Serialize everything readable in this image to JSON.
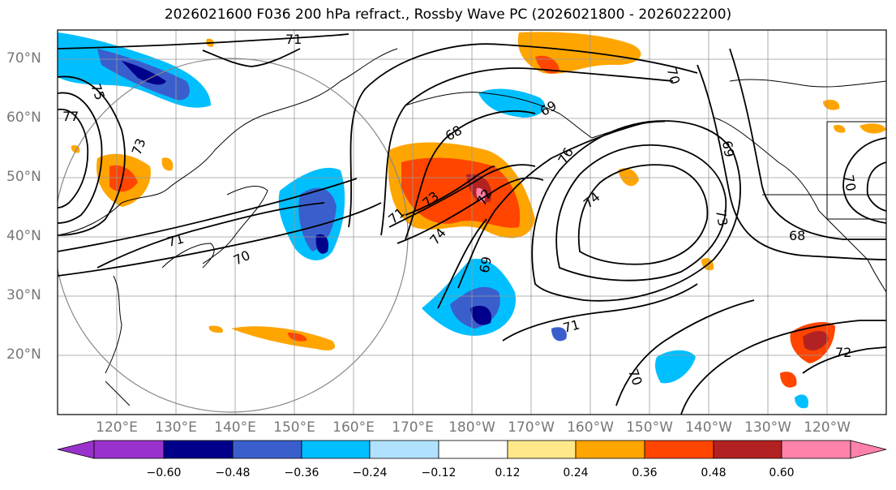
{
  "title": "2026021600 F036 200 hPa refract., Rossby Wave PC (2026021800 - 2026022200)",
  "axes": {
    "lat_labels": [
      "70°N",
      "60°N",
      "50°N",
      "40°N",
      "30°N",
      "20°N"
    ],
    "lon_labels": [
      "120°E",
      "130°E",
      "140°E",
      "150°E",
      "160°E",
      "170°E",
      "180°W",
      "170°W",
      "160°W",
      "150°W",
      "140°W",
      "130°W",
      "120°W"
    ]
  },
  "contour_labels": [
    "71",
    "75",
    "77",
    "73",
    "71",
    "70",
    "73",
    "71",
    "74",
    "72",
    "68",
    "69",
    "70",
    "76",
    "74",
    "73",
    "69",
    "68",
    "70",
    "71",
    "70",
    "72",
    "69"
  ],
  "colorbar": {
    "ticks": [
      "−0.60",
      "−0.48",
      "−0.36",
      "−0.24",
      "−0.12",
      "0.12",
      "0.24",
      "0.36",
      "0.48",
      "0.60"
    ],
    "colors": [
      "#9932cc",
      "#00008b",
      "#3a5fcd",
      "#00bfff",
      "#b0e2ff",
      "#ffffff",
      "#ffe88a",
      "#ffa500",
      "#ff4500",
      "#b22222",
      "#ff82ab"
    ]
  },
  "chart_data": {
    "type": "heatmap",
    "title": "2026021600 F036 200 hPa refract., Rossby Wave PC (2026021800 - 2026022200)",
    "variable": "200 hPa refractive index (contours) and Rossby Wave PC (shaded)",
    "lat_range": [
      10,
      75
    ],
    "lon_range": [
      110,
      245
    ],
    "colorbar_levels": [
      -0.6,
      -0.48,
      -0.36,
      -0.24,
      -0.12,
      0.12,
      0.24,
      0.36,
      0.48,
      0.6
    ]
  }
}
